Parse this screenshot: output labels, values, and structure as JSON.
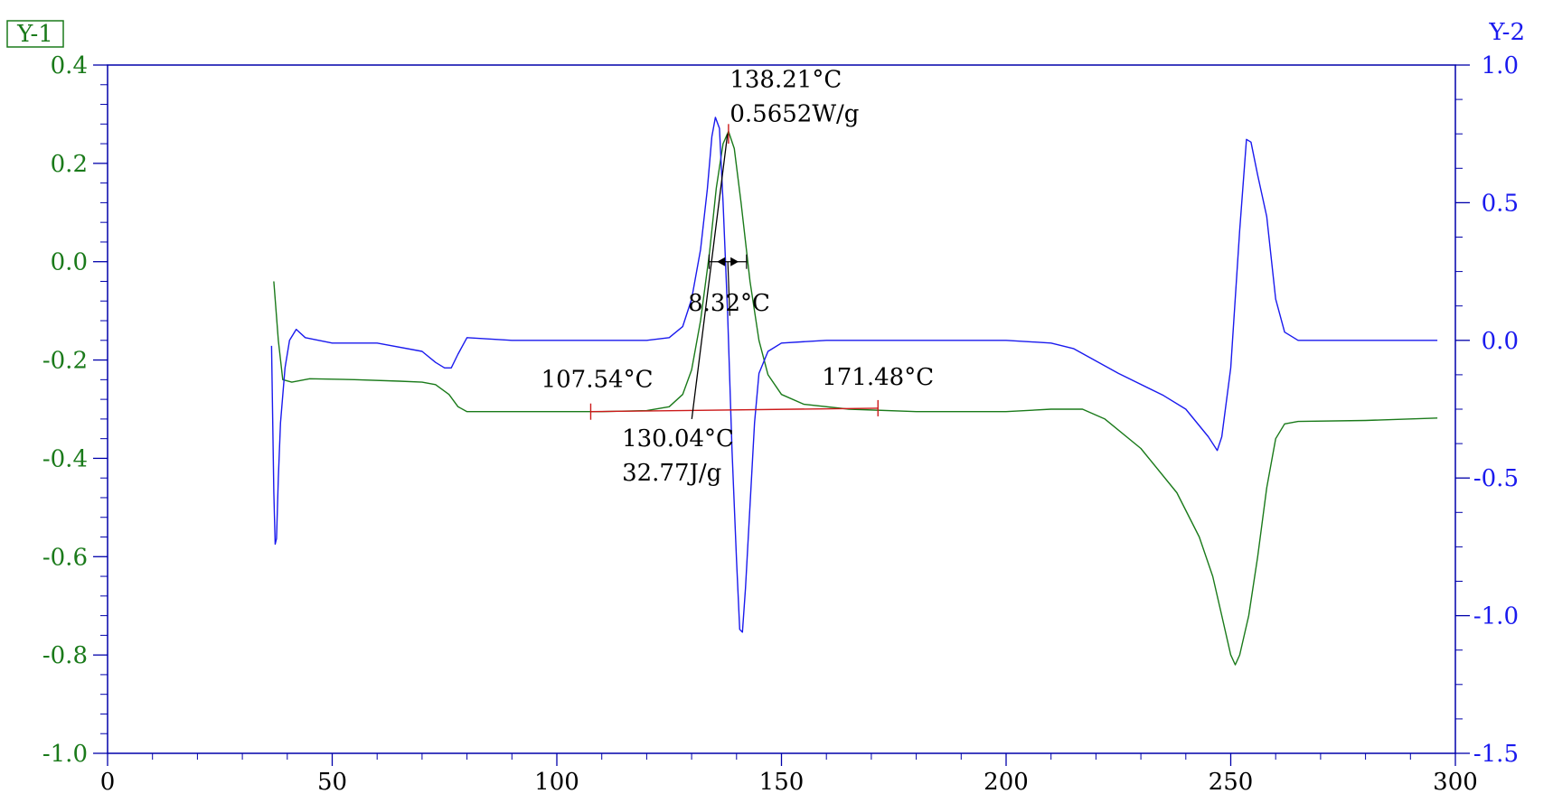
{
  "colors": {
    "y1": "#1a7a1a",
    "y2": "#1a1aee",
    "frame": "#0000aa",
    "baseline": "#cc1a1a",
    "annotation": "#000000"
  },
  "chart_data": {
    "type": "line",
    "y1_label": "Y-1",
    "y2_label": "Y-2",
    "xlim": [
      0,
      300
    ],
    "y1lim": [
      -1.0,
      0.4
    ],
    "y2lim": [
      -1.5,
      1.0
    ],
    "x_ticks": [
      0,
      50,
      100,
      150,
      200,
      250,
      300
    ],
    "x_tick_labels": [
      "0",
      "50",
      "100",
      "150",
      "200",
      "250",
      "300"
    ],
    "y1_ticks": [
      0.4,
      0.2,
      0.0,
      -0.2,
      -0.4,
      -0.6,
      -0.8,
      -1.0
    ],
    "y1_tick_labels": [
      "0.4",
      "0.2",
      "0.0",
      "-0.2",
      "-0.4",
      "-0.6",
      "-0.8",
      "-1.0"
    ],
    "y2_ticks": [
      1.0,
      0.5,
      0.0,
      -0.5,
      -1.0,
      -1.5
    ],
    "y2_tick_labels": [
      "1.0",
      "0.5",
      "0.0",
      "-0.5",
      "-1.0",
      "-1.5"
    ],
    "grid": false,
    "series": [
      {
        "axis": "y1",
        "x": [
          37,
          38,
          39,
          41,
          45,
          55,
          65,
          70,
          73,
          76,
          78,
          80,
          90,
          100,
          110,
          120,
          125,
          128,
          130,
          132,
          134,
          135.5,
          137,
          138.2,
          139.5,
          141,
          143,
          145,
          147,
          150,
          155,
          165,
          180,
          200,
          210,
          217,
          222,
          230,
          238,
          243,
          246,
          248,
          250,
          251,
          252,
          254,
          256,
          258,
          260,
          262,
          265,
          280,
          296
        ],
        "y": [
          -0.04,
          -0.16,
          -0.24,
          -0.245,
          -0.238,
          -0.24,
          -0.243,
          -0.245,
          -0.25,
          -0.27,
          -0.295,
          -0.305,
          -0.305,
          -0.305,
          -0.305,
          -0.303,
          -0.295,
          -0.27,
          -0.22,
          -0.12,
          0.02,
          0.15,
          0.24,
          0.2652,
          0.23,
          0.12,
          -0.04,
          -0.16,
          -0.23,
          -0.27,
          -0.29,
          -0.3,
          -0.305,
          -0.305,
          -0.3,
          -0.3,
          -0.32,
          -0.38,
          -0.47,
          -0.56,
          -0.64,
          -0.72,
          -0.8,
          -0.82,
          -0.8,
          -0.72,
          -0.6,
          -0.46,
          -0.36,
          -0.33,
          -0.325,
          -0.323,
          -0.318
        ]
      },
      {
        "axis": "y2",
        "x": [
          36.5,
          37.0,
          37.3,
          37.6,
          38,
          38.5,
          39.5,
          40.5,
          42,
          44,
          50,
          60,
          70,
          73,
          75,
          76.5,
          78,
          80,
          90,
          100,
          110,
          120,
          125,
          128,
          130,
          132,
          133.5,
          134.5,
          135.3,
          136.2,
          137,
          138,
          139,
          140,
          140.7,
          141.3,
          142,
          143,
          144,
          145,
          147,
          150,
          160,
          200,
          210,
          215,
          225,
          235,
          240,
          245,
          247,
          248,
          250,
          252,
          253.5,
          254.5,
          256,
          258,
          260,
          262,
          265,
          280,
          296
        ],
        "y": [
          -0.02,
          -0.55,
          -0.74,
          -0.72,
          -0.5,
          -0.3,
          -0.1,
          0.0,
          0.04,
          0.01,
          -0.01,
          -0.01,
          -0.04,
          -0.08,
          -0.1,
          -0.1,
          -0.05,
          0.01,
          0.0,
          0.0,
          0.0,
          0.0,
          0.01,
          0.05,
          0.15,
          0.33,
          0.55,
          0.74,
          0.81,
          0.77,
          0.5,
          0.1,
          -0.4,
          -0.8,
          -1.05,
          -1.06,
          -0.9,
          -0.6,
          -0.3,
          -0.12,
          -0.04,
          -0.01,
          0.0,
          0.0,
          -0.01,
          -0.03,
          -0.12,
          -0.2,
          -0.25,
          -0.35,
          -0.4,
          -0.35,
          -0.1,
          0.4,
          0.73,
          0.72,
          0.6,
          0.45,
          0.15,
          0.03,
          0.0,
          0.0,
          0.0
        ]
      }
    ],
    "baseline": {
      "x_start": 107.54,
      "x_end": 171.48,
      "y_start": -0.305,
      "y_end": -0.298
    },
    "peak_marker": {
      "x": 138.21,
      "y_top": 0.28,
      "y_bottom": 0.24
    },
    "width_marker": {
      "x_start": 133.9,
      "x_end": 142.22,
      "y": 0.0,
      "label_x": 138.5,
      "label_y": -0.11
    },
    "onset_line": {
      "x1": 130.04,
      "y1": -0.32,
      "x2": 138.0,
      "y2": 0.26
    },
    "annotations": [
      {
        "id": "peak-temp",
        "text": "138.21°C",
        "x": 138.5,
        "y": 0.355
      },
      {
        "id": "peak-heatflow",
        "text": "0.5652W/g",
        "x": 138.5,
        "y": 0.285
      },
      {
        "id": "peak-width",
        "text": "8.32°C",
        "x": 129.2,
        "y": -0.1
      },
      {
        "id": "start-temp",
        "text": "107.54°C",
        "x": 96.5,
        "y": -0.255
      },
      {
        "id": "end-temp",
        "text": "171.48°C",
        "x": 159.0,
        "y": -0.25
      },
      {
        "id": "onset-temp",
        "text": "130.04°C",
        "x": 114.5,
        "y": -0.375
      },
      {
        "id": "enthalpy",
        "text": "32.77J/g",
        "x": 114.5,
        "y": -0.445
      }
    ]
  }
}
